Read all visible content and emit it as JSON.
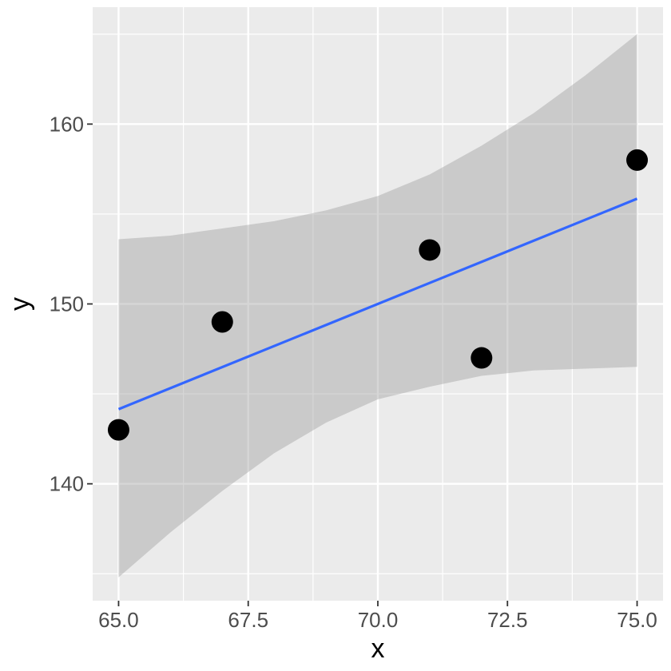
{
  "chart_data": {
    "type": "scatter",
    "title": "",
    "xlabel": "x",
    "ylabel": "y",
    "xlim": [
      64.5,
      75.5
    ],
    "ylim": [
      133.5,
      166.5
    ],
    "x_ticks": [
      "65.0",
      "67.5",
      "70.0",
      "72.5",
      "75.0"
    ],
    "y_ticks": [
      "140",
      "150",
      "160"
    ],
    "grid": true,
    "points": [
      {
        "x": 65,
        "y": 143
      },
      {
        "x": 67,
        "y": 149
      },
      {
        "x": 71,
        "y": 153
      },
      {
        "x": 72,
        "y": 147
      },
      {
        "x": 75,
        "y": 158
      }
    ],
    "fit_line": {
      "x": [
        65,
        75
      ],
      "y": [
        144.15,
        155.85
      ]
    },
    "confidence_band": {
      "x": [
        65,
        66,
        67,
        68,
        69,
        70,
        71,
        72,
        73,
        74,
        75
      ],
      "upper": [
        153.6,
        153.8,
        154.2,
        154.6,
        155.2,
        156.0,
        157.2,
        158.8,
        160.6,
        162.7,
        165.0
      ],
      "lower": [
        134.8,
        137.3,
        139.6,
        141.7,
        143.4,
        144.7,
        145.4,
        146.0,
        146.3,
        146.4,
        146.5
      ]
    },
    "colors": {
      "panel_background": "#ebebeb",
      "grid": "#ffffff",
      "points": "#000000",
      "fit_line": "#3366ff",
      "band": "#999999"
    }
  }
}
